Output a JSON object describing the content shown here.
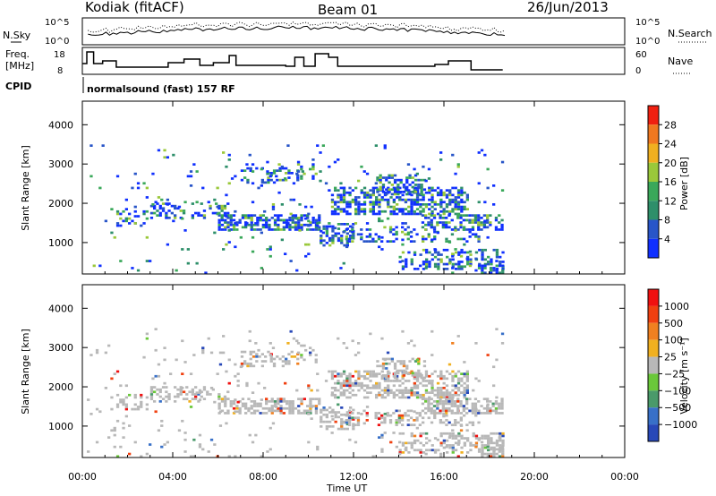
{
  "header": {
    "title": "Kodiak (fitACF)",
    "beam": "Beam 01",
    "date": "26/Jun/2013"
  },
  "sky_panel": {
    "left_label": "N.Sky",
    "right_label": "N.Search",
    "left_ticks": [
      "10^5",
      "10^0"
    ],
    "right_ticks": [
      "10^5",
      "10^0"
    ]
  },
  "freq_panel": {
    "left_label_1": "Freq.",
    "left_label_2": "[MHz]",
    "left_ticks": [
      "18",
      "8"
    ],
    "right_label": "Nave",
    "right_ticks": [
      "60",
      "0"
    ]
  },
  "cpid": {
    "label": "CPID",
    "text": "normalsound (fast) 157 RF"
  },
  "colors": {
    "power": [
      "#1030ff",
      "#2855c8",
      "#2e8f6a",
      "#3aa85a",
      "#9ac83a",
      "#f0b020",
      "#f07820",
      "#f02010"
    ],
    "velocity": [
      "#2848b8",
      "#3870c8",
      "#4a9a6a",
      "#6ac83a",
      "#b8b8b8",
      "#f0b020",
      "#f08020",
      "#f04010",
      "#f01010"
    ]
  },
  "chart_data": [
    {
      "type": "heatmap",
      "name_key": "power",
      "xlabel": "",
      "ylabel": "Slant Range [km]",
      "xlim": [
        0,
        24
      ],
      "ylim": [
        200,
        4600
      ],
      "yticks": [
        "1000",
        "2000",
        "3000",
        "4000"
      ],
      "xticks": [
        "00:00",
        "04:00",
        "08:00",
        "12:00",
        "16:00",
        "20:00",
        "00:00"
      ],
      "colorbar": {
        "label": "Power [dB]",
        "ticks": [
          "4",
          "8",
          "12",
          "16",
          "20",
          "24",
          "28"
        ]
      }
    },
    {
      "type": "heatmap",
      "name_key": "velocity",
      "xlabel": "Time UT",
      "ylabel": "Slant Range [km]",
      "xlim": [
        0,
        24
      ],
      "ylim": [
        200,
        4600
      ],
      "yticks": [
        "1000",
        "2000",
        "3000",
        "4000"
      ],
      "xticks": [
        "00:00",
        "04:00",
        "08:00",
        "12:00",
        "16:00",
        "20:00",
        "00:00"
      ],
      "colorbar": {
        "label": "Velocity [m s⁻¹]",
        "ticks": [
          "1000",
          "500",
          "100",
          "25",
          "−25",
          "−100",
          "−500",
          "−1000"
        ]
      }
    }
  ]
}
